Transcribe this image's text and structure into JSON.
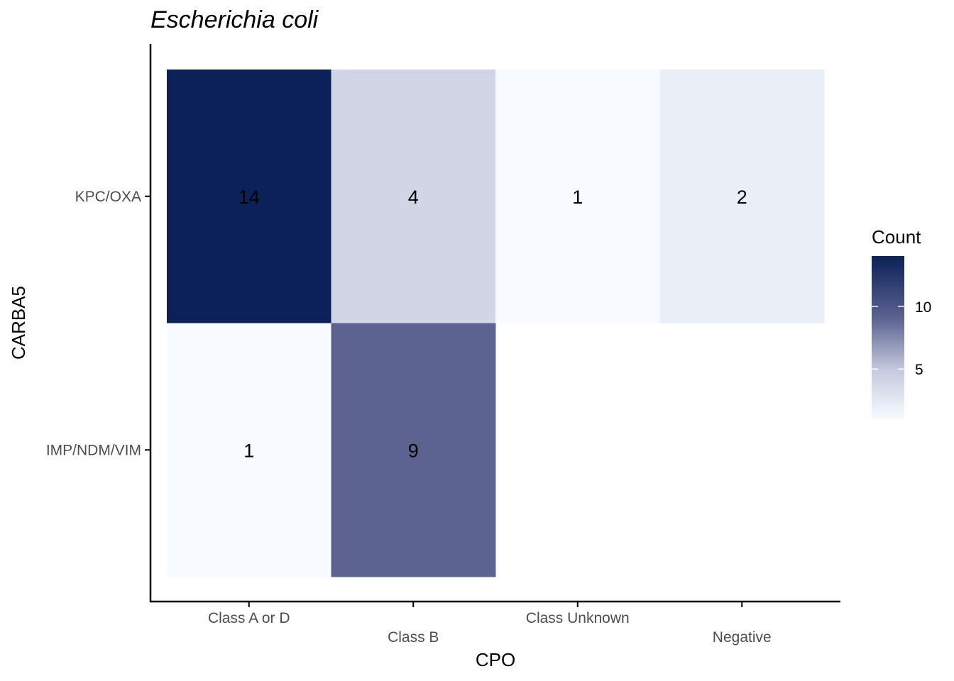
{
  "chart_data": {
    "type": "heatmap",
    "title": "Escherichia coli",
    "xlabel": "CPO",
    "ylabel": "CARBA5",
    "x_categories": [
      "Class A or D",
      "Class B",
      "Class Unknown",
      "Negative"
    ],
    "y_categories": [
      "KPC/OXA",
      "IMP/NDM/VIM"
    ],
    "cells": [
      {
        "x": "Class A or D",
        "y": "KPC/OXA",
        "value": 14
      },
      {
        "x": "Class B",
        "y": "KPC/OXA",
        "value": 4
      },
      {
        "x": "Class Unknown",
        "y": "KPC/OXA",
        "value": 1
      },
      {
        "x": "Negative",
        "y": "KPC/OXA",
        "value": 2
      },
      {
        "x": "Class A or D",
        "y": "IMP/NDM/VIM",
        "value": 1
      },
      {
        "x": "Class B",
        "y": "IMP/NDM/VIM",
        "value": 9
      }
    ],
    "color_scale": {
      "low_color": "#f7fbff",
      "high_color": "#0b2158",
      "value_range": [
        1,
        14
      ]
    },
    "legend": {
      "title": "Count",
      "ticks": [
        5,
        10
      ],
      "placement": "right"
    },
    "grid": false
  }
}
